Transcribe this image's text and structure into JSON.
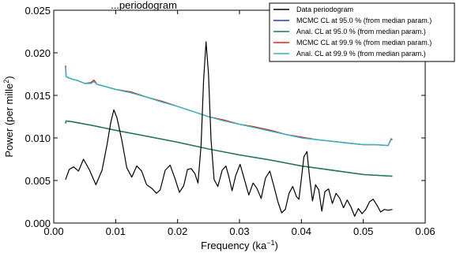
{
  "chart_data": {
    "type": "line",
    "title": "...periodogram",
    "xlabel": "Frequency (ka",
    "xlabel_sup": "−1",
    "xlabel_close": ")",
    "ylabel": "Power (per mille",
    "ylabel_sup": "2",
    "ylabel_close": ")",
    "xlim": [
      0.0,
      0.06
    ],
    "ylim": [
      0.0,
      0.025
    ],
    "x_ticks": [
      0.0,
      0.01,
      0.02,
      0.03,
      0.04,
      0.05,
      0.06
    ],
    "x_tick_labels": [
      "0.00",
      "0.01",
      "0.02",
      "0.03",
      "0.04",
      "0.05",
      "0.06"
    ],
    "y_ticks": [
      0.0,
      0.005,
      0.01,
      0.015,
      0.02,
      0.025
    ],
    "y_tick_labels": [
      "0.000",
      "0.005",
      "0.010",
      "0.015",
      "0.020",
      "0.025"
    ],
    "grid": false,
    "legend_position": "top-right",
    "series": [
      {
        "name": "Data periodogram",
        "color": "#000000",
        "x": [
          0.0019,
          0.0025,
          0.0032,
          0.004,
          0.0048,
          0.0058,
          0.0068,
          0.0078,
          0.0086,
          0.0092,
          0.0097,
          0.0102,
          0.011,
          0.0118,
          0.0126,
          0.0134,
          0.0142,
          0.015,
          0.0158,
          0.0166,
          0.0172,
          0.018,
          0.0188,
          0.0196,
          0.0203,
          0.021,
          0.0216,
          0.0222,
          0.0228,
          0.0233,
          0.0238,
          0.0242,
          0.0246,
          0.025,
          0.0254,
          0.0259,
          0.0265,
          0.0272,
          0.0278,
          0.0283,
          0.0288,
          0.0294,
          0.0301,
          0.0308,
          0.0315,
          0.0322,
          0.0328,
          0.0335,
          0.0342,
          0.0349,
          0.0356,
          0.0362,
          0.0368,
          0.0374,
          0.038,
          0.0386,
          0.0392,
          0.0396,
          0.04,
          0.0404,
          0.0409,
          0.0413,
          0.0418,
          0.0423,
          0.0428,
          0.0433,
          0.0438,
          0.0444,
          0.045,
          0.0456,
          0.0462,
          0.0468,
          0.0474,
          0.048,
          0.0486,
          0.0492,
          0.0498,
          0.0504,
          0.051,
          0.0516,
          0.0522,
          0.0528,
          0.0534,
          0.054,
          0.0547
        ],
        "y": [
          0.0051,
          0.0063,
          0.0066,
          0.0061,
          0.0075,
          0.0062,
          0.0045,
          0.0062,
          0.0092,
          0.0118,
          0.0133,
          0.0124,
          0.0097,
          0.0065,
          0.0054,
          0.0067,
          0.0061,
          0.0045,
          0.0041,
          0.0035,
          0.0039,
          0.0062,
          0.0068,
          0.0052,
          0.0036,
          0.0044,
          0.0063,
          0.0064,
          0.0058,
          0.0047,
          0.0091,
          0.0168,
          0.0213,
          0.0175,
          0.0098,
          0.0051,
          0.0043,
          0.0062,
          0.0067,
          0.0054,
          0.0038,
          0.0056,
          0.0069,
          0.0051,
          0.0033,
          0.0047,
          0.0041,
          0.0029,
          0.0053,
          0.0061,
          0.0042,
          0.0025,
          0.0012,
          0.0016,
          0.0035,
          0.0043,
          0.0031,
          0.0028,
          0.0052,
          0.0078,
          0.0084,
          0.0055,
          0.0026,
          0.0045,
          0.0039,
          0.0014,
          0.0037,
          0.004,
          0.0023,
          0.0035,
          0.0029,
          0.0018,
          0.0027,
          0.0019,
          0.0008,
          0.0017,
          0.0011,
          0.0016,
          0.0025,
          0.0028,
          0.0021,
          0.0013,
          0.0016,
          0.0015,
          0.0016
        ]
      },
      {
        "name": "MCMC CL at 95.0 % (from median param.)",
        "color": "#1f3fbf",
        "x": [
          0.0019,
          0.002,
          0.003,
          0.006,
          0.01,
          0.015,
          0.02,
          0.025,
          0.03,
          0.035,
          0.04,
          0.045,
          0.05,
          0.0547
        ],
        "y": [
          0.0117,
          0.012,
          0.0119,
          0.0115,
          0.0109,
          0.0102,
          0.0095,
          0.0087,
          0.008,
          0.0074,
          0.0067,
          0.0062,
          0.0057,
          0.0055
        ]
      },
      {
        "name": "Anal. CL at 95.0 % (from median param.)",
        "color": "#1d7a52",
        "x": [
          0.0019,
          0.002,
          0.003,
          0.006,
          0.01,
          0.015,
          0.02,
          0.025,
          0.03,
          0.035,
          0.04,
          0.045,
          0.05,
          0.0547
        ],
        "y": [
          0.0117,
          0.012,
          0.0119,
          0.0115,
          0.0109,
          0.0102,
          0.0095,
          0.0087,
          0.008,
          0.0074,
          0.0067,
          0.0062,
          0.0057,
          0.0055
        ]
      },
      {
        "name": "MCMC CL at 99.9 % (from median param.)",
        "color": "#e0201c",
        "x": [
          0.0019,
          0.002,
          0.0023,
          0.003,
          0.004,
          0.005,
          0.006,
          0.0065,
          0.007,
          0.008,
          0.01,
          0.0125,
          0.015,
          0.0175,
          0.02,
          0.0225,
          0.025,
          0.0275,
          0.03,
          0.0325,
          0.035,
          0.0375,
          0.04,
          0.0425,
          0.045,
          0.0475,
          0.05,
          0.052,
          0.054,
          0.0545,
          0.0547
        ],
        "y": [
          0.0185,
          0.0172,
          0.0171,
          0.0169,
          0.0167,
          0.0164,
          0.0165,
          0.0168,
          0.0163,
          0.0161,
          0.0157,
          0.0154,
          0.0148,
          0.0143,
          0.0137,
          0.0131,
          0.0125,
          0.0121,
          0.0116,
          0.0113,
          0.0109,
          0.0104,
          0.0101,
          0.0098,
          0.0096,
          0.0094,
          0.0092,
          0.0092,
          0.0091,
          0.0099,
          0.0098
        ]
      },
      {
        "name": "Anal. CL at 99.9 % (from median param.)",
        "color": "#29b8c9",
        "x": [
          0.0019,
          0.002,
          0.0023,
          0.003,
          0.004,
          0.005,
          0.006,
          0.0065,
          0.007,
          0.008,
          0.01,
          0.0125,
          0.015,
          0.0175,
          0.02,
          0.0225,
          0.025,
          0.0275,
          0.03,
          0.0325,
          0.035,
          0.0375,
          0.04,
          0.0425,
          0.045,
          0.0475,
          0.05,
          0.052,
          0.054,
          0.0545,
          0.0547
        ],
        "y": [
          0.0183,
          0.0172,
          0.0171,
          0.0169,
          0.0167,
          0.0164,
          0.0164,
          0.0166,
          0.0163,
          0.0161,
          0.0157,
          0.0153,
          0.0148,
          0.0142,
          0.0137,
          0.0131,
          0.0125,
          0.012,
          0.0116,
          0.0112,
          0.0108,
          0.0104,
          0.01,
          0.0098,
          0.0096,
          0.0094,
          0.0092,
          0.0092,
          0.0091,
          0.0098,
          0.0098
        ]
      }
    ]
  }
}
